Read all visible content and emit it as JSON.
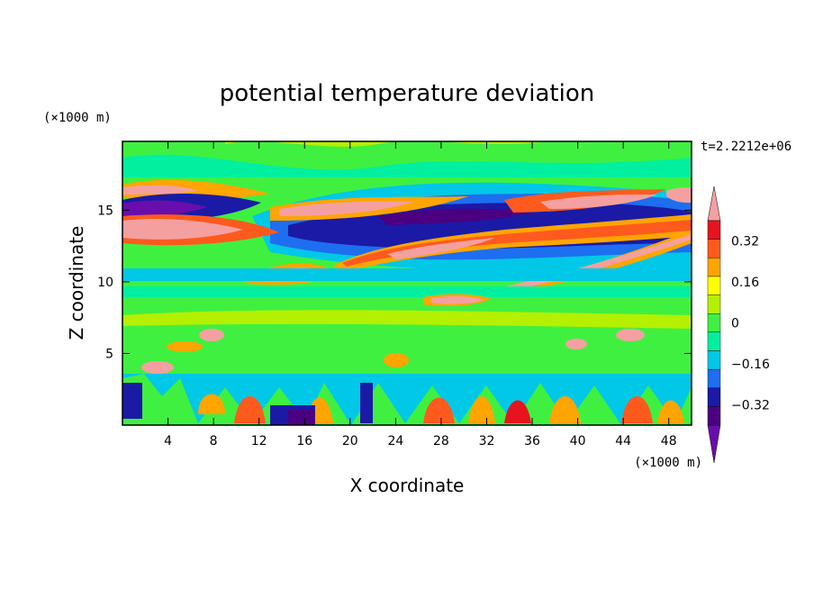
{
  "chart_data": {
    "type": "heatmap",
    "title": "potential temperature deviation",
    "xlabel": "X coordinate",
    "ylabel": "Z coordinate",
    "x_unit": "(×1000 m)",
    "y_unit": "(×1000 m)",
    "time_label": "t=2.2212e+06",
    "xlim": [
      0,
      50
    ],
    "ylim": [
      0,
      19.8
    ],
    "x_ticks": [
      4,
      8,
      12,
      16,
      20,
      24,
      28,
      32,
      36,
      40,
      44,
      48
    ],
    "y_ticks": [
      5,
      10,
      15
    ],
    "colorbar": {
      "levels": [
        -0.48,
        -0.4,
        -0.32,
        -0.24,
        -0.16,
        -0.08,
        0,
        0.08,
        0.16,
        0.24,
        0.32,
        0.4,
        0.48
      ],
      "labels": [
        "0.32",
        "0.16",
        "0",
        "−0.16",
        "−0.32"
      ],
      "label_values": [
        0.32,
        0.16,
        0,
        -0.16,
        -0.32
      ],
      "colors_low_to_high": [
        "#6a0dad",
        "#4b0082",
        "#1a1aa6",
        "#1e6ef0",
        "#00c8e6",
        "#00f0a0",
        "#40f040",
        "#b4f000",
        "#ffff00",
        "#ffa500",
        "#ff5a1e",
        "#e6141e",
        "#f5a0a0"
      ]
    }
  }
}
